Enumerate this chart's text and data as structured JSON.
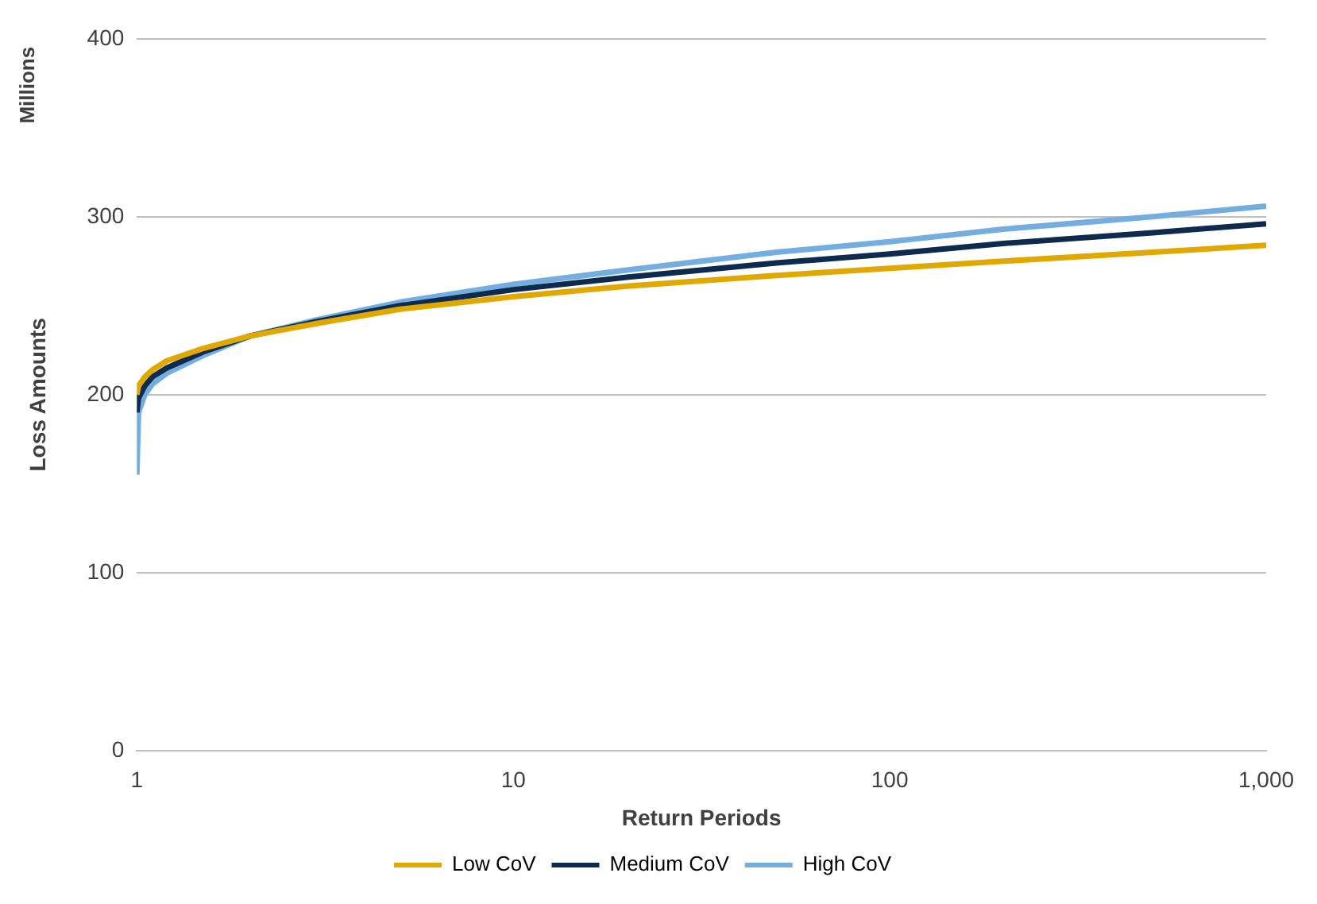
{
  "chart_data": {
    "type": "line",
    "xlabel": "Return Periods",
    "ylabel": "Loss Amounts",
    "annotations": [
      "Millions"
    ],
    "x": [
      1,
      1.01,
      1.05,
      1.1,
      1.2,
      1.5,
      2,
      3,
      5,
      10,
      20,
      50,
      100,
      200,
      500,
      1000
    ],
    "series": [
      {
        "name": "Low CoV",
        "color": "#e0a800",
        "values": [
          200,
          205,
          210,
          214,
          219,
          226,
          233,
          240,
          248,
          255,
          261,
          267,
          271,
          275,
          280,
          284
        ]
      },
      {
        "name": "Medium CoV",
        "color": "#0e2a4e",
        "values": [
          190,
          198,
          205,
          210,
          215,
          224,
          233,
          241,
          250,
          259,
          266,
          274,
          279,
          285,
          291,
          296
        ]
      },
      {
        "name": "High CoV",
        "color": "#74aee0",
        "values": [
          155,
          190,
          200,
          206,
          212,
          222,
          233,
          242,
          252,
          262,
          270,
          280,
          286,
          293,
          300,
          306
        ]
      }
    ],
    "log": "x",
    "xlim": [
      1,
      1000
    ],
    "xticks": [
      1,
      10,
      100,
      {
        "value": 1000,
        "label": "1,000"
      }
    ],
    "ylim": [
      0,
      400
    ],
    "yticks": [
      0,
      100,
      200,
      300,
      400
    ],
    "grid": "y",
    "legend": "bottom",
    "marker": "none",
    "line_style": "solid"
  }
}
